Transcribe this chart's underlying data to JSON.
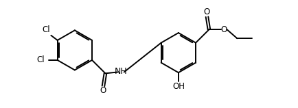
{
  "bg_color": "#ffffff",
  "line_color": "#000000",
  "line_width": 1.4,
  "font_size": 8.5,
  "fig_width": 4.34,
  "fig_height": 1.58,
  "dpi": 100,
  "xlim": [
    0,
    10.5
  ],
  "ylim": [
    0,
    4.2
  ]
}
